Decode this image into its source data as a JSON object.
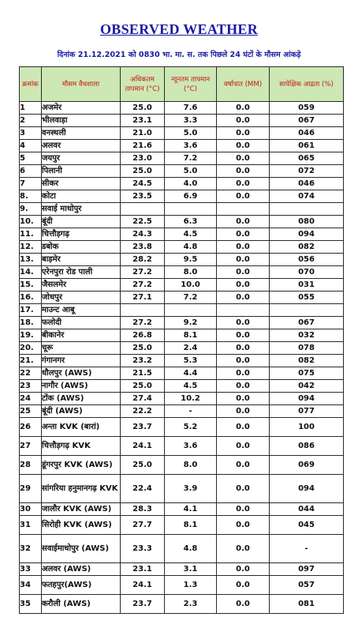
{
  "title": "OBSERVED WEATHER",
  "subtitle": "दिनांक 21.12.2021 को 0830 भा. मा. स. तक पिछले 24 घंटों के मौसम आंकड़े",
  "header": {
    "sno": "क्रमांक",
    "station": "मौसम वैधशाला",
    "max": "अधिकतम तापमान (°C)",
    "min": "न्यूनतम तापमान (°C)",
    "rain": "वर्षापात (MM)",
    "rh": "सापेक्षिक आद्रता (%)"
  },
  "rows": [
    {
      "sno": "1",
      "station": "अजमेर",
      "max": "25.0",
      "min": "7.6",
      "rain": "0.0",
      "rh": "059"
    },
    {
      "sno": "2",
      "station": "भीलवाड़ा",
      "max": "23.1",
      "min": "3.3",
      "rain": "0.0",
      "rh": "067"
    },
    {
      "sno": "3",
      "station": "वनस्थली",
      "max": "21.0",
      "min": "5.0",
      "rain": "0.0",
      "rh": "046"
    },
    {
      "sno": "4",
      "station": "अलवर",
      "max": "21.6",
      "min": "3.6",
      "rain": "0.0",
      "rh": "061"
    },
    {
      "sno": "5",
      "station": "जयपुर",
      "max": "23.0",
      "min": "7.2",
      "rain": "0.0",
      "rh": "065"
    },
    {
      "sno": "6",
      "station": "पिलानी",
      "max": "25.0",
      "min": "5.0",
      "rain": "0.0",
      "rh": "072"
    },
    {
      "sno": "7",
      "station": "सीकर",
      "max": "24.5",
      "min": "4.0",
      "rain": "0.0",
      "rh": "046"
    },
    {
      "sno": "8.",
      "station": "कोटा",
      "max": "23.5",
      "min": "6.9",
      "rain": "0.0",
      "rh": "074"
    },
    {
      "sno": "9.",
      "station": "सवाई माधोपुर",
      "max": "",
      "min": "",
      "rain": "",
      "rh": ""
    },
    {
      "sno": "10.",
      "station": "बूंदी",
      "max": "22.5",
      "min": "6.3",
      "rain": "0.0",
      "rh": "080"
    },
    {
      "sno": "11.",
      "station": "चित्तौड़गढ़",
      "max": "24.3",
      "min": "4.5",
      "rain": "0.0",
      "rh": "094"
    },
    {
      "sno": "12.",
      "station": "डबोक",
      "max": "23.8",
      "min": "4.8",
      "rain": "0.0",
      "rh": "082"
    },
    {
      "sno": "13.",
      "station": "बाड़मेर",
      "max": "28.2",
      "min": "9.5",
      "rain": "0.0",
      "rh": "056"
    },
    {
      "sno": "14.",
      "station": "एरेनपुरा रोड पाली",
      "max": "27.2",
      "min": "8.0",
      "rain": "0.0",
      "rh": "070"
    },
    {
      "sno": "15.",
      "station": "जैसलमेर",
      "max": "27.2",
      "min": "10.0",
      "rain": "0.0",
      "rh": "031"
    },
    {
      "sno": "16.",
      "station": "जोधपुर",
      "max": "27.1",
      "min": "7.2",
      "rain": "0.0",
      "rh": "055"
    },
    {
      "sno": "17.",
      "station": "माउन्ट आबू",
      "max": "",
      "min": "",
      "rain": "",
      "rh": ""
    },
    {
      "sno": "18.",
      "station": "फलोदी",
      "max": "27.2",
      "min": "9.2",
      "rain": "0.0",
      "rh": "067"
    },
    {
      "sno": "19.",
      "station": "बीकानेर",
      "max": "26.8",
      "min": "8.1",
      "rain": "0.0",
      "rh": "032"
    },
    {
      "sno": "20.",
      "station": "चूरू",
      "max": "25.0",
      "min": "2.4",
      "rain": "0.0",
      "rh": "078"
    },
    {
      "sno": "21.",
      "station": "गंगानगर",
      "max": "23.2",
      "min": "5.3",
      "rain": "0.0",
      "rh": "082"
    },
    {
      "sno": "22",
      "station": "धौलपुर (AWS)",
      "max": "21.5",
      "min": "4.4",
      "rain": "0.0",
      "rh": "075"
    },
    {
      "sno": "23",
      "station": "नागौर (AWS)",
      "max": "25.0",
      "min": "4.5",
      "rain": "0.0",
      "rh": "042"
    },
    {
      "sno": "24",
      "station": "टोंक (AWS)",
      "max": "27.4",
      "min": "10.2",
      "rain": "0.0",
      "rh": "094"
    },
    {
      "sno": "25",
      "station": "बूंदी (AWS)",
      "max": "22.2",
      "min": "-",
      "rain": "0.0",
      "rh": "077"
    },
    {
      "sno": "26",
      "station": "अन्ता KVK (बारां)",
      "max": "23.7",
      "min": "5.2",
      "rain": "0.0",
      "rh": "100"
    },
    {
      "sno": "27",
      "station": "चित्तौड़गढ़ KVK",
      "max": "24.1",
      "min": "3.6",
      "rain": "0.0",
      "rh": "086"
    },
    {
      "sno": "28",
      "station": "डूंगरपुर KVK (AWS)",
      "max": "25.0",
      "min": "8.0",
      "rain": "0.0",
      "rh": "069"
    },
    {
      "sno": "29",
      "station": "सांगरिया हनुमानगढ़ KVK (AWS)",
      "max": "22.4",
      "min": "3.9",
      "rain": "0.0",
      "rh": "094"
    },
    {
      "sno": "30",
      "station": "जालौर KVK (AWS)",
      "max": "28.3",
      "min": "4.1",
      "rain": "0.0",
      "rh": "044"
    },
    {
      "sno": "31",
      "station": "सिरोही KVK (AWS)",
      "max": "27.7",
      "min": "8.1",
      "rain": "0.0",
      "rh": "045"
    },
    {
      "sno": "32",
      "station": "सवाईमाधोपुर (AWS)",
      "max": "23.3",
      "min": "4.8",
      "rain": "0.0",
      "rh": "-"
    },
    {
      "sno": "33",
      "station": "अलवर (AWS)",
      "max": "23.1",
      "min": "3.1",
      "rain": "0.0",
      "rh": "097"
    },
    {
      "sno": "34",
      "station": "फतहपुर(AWS)",
      "max": "24.1",
      "min": "1.3",
      "rain": "0.0",
      "rh": "057"
    },
    {
      "sno": "35",
      "station": "करौली (AWS)",
      "max": "23.7",
      "min": "2.3",
      "rain": "0.0",
      "rh": "081"
    }
  ]
}
